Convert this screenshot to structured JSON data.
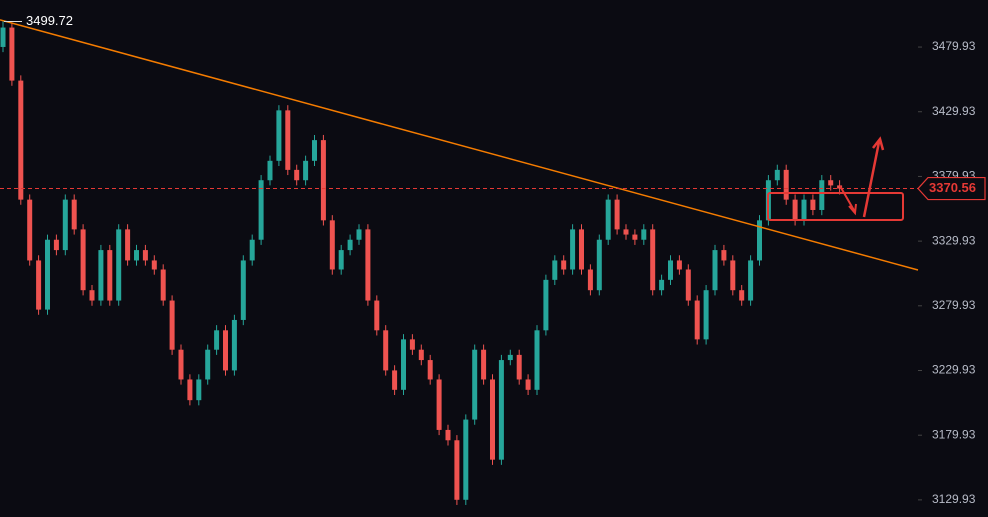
{
  "chart_data": {
    "type": "candlestick",
    "up_color": "#26a69a",
    "down_color": "#ef5350",
    "ylim": [
      3116.7,
      3516.3
    ],
    "yticks": [
      3129.93,
      3179.93,
      3229.93,
      3279.93,
      3329.93,
      3379.93,
      3429.93,
      3479.93
    ],
    "open": [
      3480,
      3495,
      3454,
      3362,
      3315,
      3277,
      3331,
      3323,
      3362,
      3339,
      3292,
      3284,
      3323,
      3284,
      3339,
      3315,
      3323,
      3315,
      3308,
      3284,
      3246,
      3223,
      3207,
      3223,
      3246,
      3261,
      3230,
      3269,
      3315,
      3331,
      3377,
      3392,
      3431,
      3385,
      3377,
      3392,
      3408,
      3346,
      3308,
      3323,
      3331,
      3339,
      3284,
      3261,
      3230,
      3215,
      3254,
      3246,
      3238,
      3223,
      3184,
      3176,
      3130,
      3192,
      3246,
      3223,
      3161,
      3238,
      3242,
      3223,
      3215,
      3261,
      3300,
      3315,
      3308,
      3339,
      3308,
      3292,
      3331,
      3362,
      3339,
      3335,
      3331,
      3339,
      3292,
      3300,
      3315,
      3308,
      3284,
      3254,
      3292,
      3323,
      3315,
      3292,
      3284,
      3315,
      3346,
      3377,
      3385,
      3362,
      3346,
      3362,
      3354,
      3377,
      3373
    ],
    "high": [
      3499.72,
      3499,
      3458,
      3366,
      3319,
      3335,
      3335,
      3366,
      3366,
      3343,
      3296,
      3327,
      3327,
      3343,
      3343,
      3327,
      3327,
      3319,
      3312,
      3288,
      3250,
      3227,
      3227,
      3250,
      3265,
      3265,
      3273,
      3319,
      3335,
      3381,
      3396,
      3435,
      3435,
      3389,
      3396,
      3412,
      3412,
      3350,
      3327,
      3335,
      3343,
      3343,
      3288,
      3265,
      3234,
      3258,
      3258,
      3250,
      3242,
      3227,
      3188,
      3180,
      3196,
      3250,
      3250,
      3227,
      3242,
      3246,
      3246,
      3227,
      3265,
      3304,
      3319,
      3319,
      3343,
      3343,
      3312,
      3335,
      3366,
      3366,
      3343,
      3339,
      3343,
      3343,
      3304,
      3319,
      3319,
      3312,
      3288,
      3296,
      3327,
      3327,
      3319,
      3296,
      3319,
      3350,
      3381,
      3389,
      3389,
      3366,
      3366,
      3366,
      3381,
      3381,
      3377
    ],
    "low": [
      3476,
      3450,
      3358,
      3311,
      3273,
      3273,
      3319,
      3319,
      3335,
      3288,
      3280,
      3280,
      3280,
      3280,
      3311,
      3311,
      3311,
      3304,
      3280,
      3242,
      3219,
      3203,
      3203,
      3219,
      3242,
      3226,
      3226,
      3265,
      3311,
      3327,
      3373,
      3388,
      3381,
      3373,
      3373,
      3388,
      3342,
      3304,
      3304,
      3319,
      3327,
      3280,
      3257,
      3226,
      3211,
      3211,
      3242,
      3234,
      3219,
      3180,
      3172,
      3126,
      3126,
      3188,
      3219,
      3157,
      3157,
      3234,
      3219,
      3211,
      3211,
      3257,
      3296,
      3304,
      3304,
      3304,
      3288,
      3288,
      3327,
      3335,
      3331,
      3327,
      3327,
      3288,
      3288,
      3296,
      3304,
      3280,
      3250,
      3250,
      3288,
      3311,
      3288,
      3280,
      3280,
      3311,
      3342,
      3373,
      3358,
      3342,
      3342,
      3350,
      3350,
      3369,
      3366
    ],
    "close": [
      3495,
      3454,
      3362,
      3315,
      3277,
      3331,
      3323,
      3362,
      3339,
      3292,
      3284,
      3323,
      3284,
      3339,
      3315,
      3323,
      3315,
      3308,
      3284,
      3246,
      3223,
      3207,
      3223,
      3246,
      3261,
      3230,
      3269,
      3315,
      3331,
      3377,
      3392,
      3431,
      3385,
      3377,
      3392,
      3408,
      3346,
      3308,
      3323,
      3331,
      3339,
      3284,
      3261,
      3230,
      3215,
      3254,
      3246,
      3238,
      3223,
      3184,
      3176,
      3130,
      3192,
      3246,
      3223,
      3161,
      3238,
      3242,
      3223,
      3215,
      3261,
      3300,
      3315,
      3308,
      3339,
      3308,
      3292,
      3331,
      3362,
      3339,
      3335,
      3331,
      3339,
      3292,
      3300,
      3315,
      3308,
      3284,
      3254,
      3292,
      3323,
      3315,
      3292,
      3284,
      3315,
      3346,
      3377,
      3385,
      3362,
      3346,
      3362,
      3354,
      3377,
      3373,
      3370.56
    ],
    "last_color": "#e53935",
    "trendline": {
      "color": "#f57c00",
      "values": [
        3501,
        3307.6
      ]
    }
  }
}
